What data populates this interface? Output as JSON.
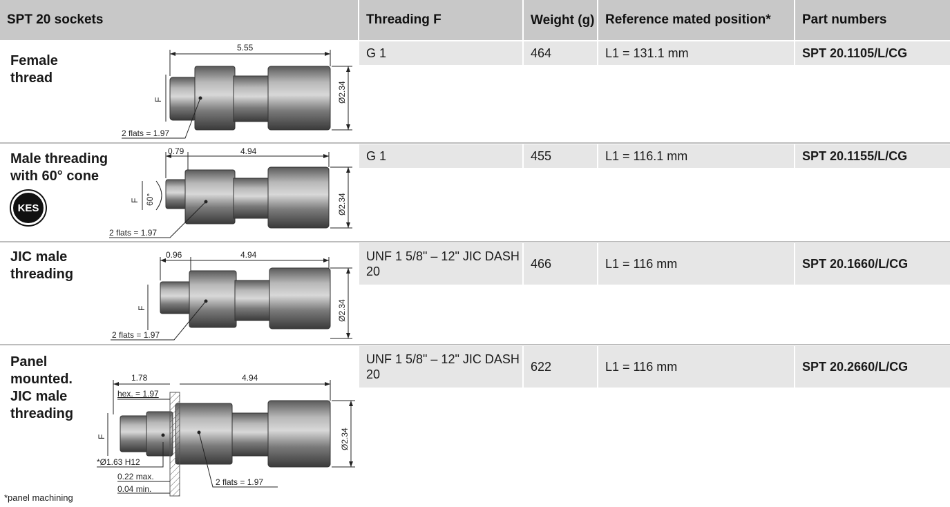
{
  "header": {
    "col1": "SPT 20 sockets",
    "col2": "Threading F",
    "col3": "Weight (g)",
    "col4": "Reference mated position*",
    "col5": "Part numbers"
  },
  "rows": [
    {
      "label": "Female thread",
      "threading": "G 1",
      "weight": "464",
      "position": "L1 = 131.1 mm",
      "part": "SPT 20.1105/L/CG",
      "dims": {
        "length": "5.55",
        "flats": "2 flats = 1.97",
        "dia": "Ø2.34",
        "f": "F"
      }
    },
    {
      "label": "Male threading with 60° cone",
      "threading": "G 1",
      "weight": "455",
      "position": "L1 = 116.1 mm",
      "part": "SPT 20.1155/L/CG",
      "badge": "KES",
      "dims": {
        "short": "0.79",
        "length": "4.94",
        "flats": "2 flats = 1.97",
        "dia": "Ø2.34",
        "f": "F",
        "angle": "60°"
      }
    },
    {
      "label": "JIC male threading",
      "threading": "UNF 1 5/8\" – 12\" JIC DASH 20",
      "weight": "466",
      "position": "L1 = 116 mm",
      "part": "SPT 20.1660/L/CG",
      "dims": {
        "short": "0.96",
        "length": "4.94",
        "flats": "2 flats = 1.97",
        "dia": "Ø2.34",
        "f": "F"
      }
    },
    {
      "label": "Panel mounted. JIC male threading",
      "threading": "UNF 1 5/8\" – 12\" JIC DASH 20",
      "weight": "622",
      "position": "L1 = 116 mm",
      "part": "SPT 20.2660/L/CG",
      "dims": {
        "short": "1.78",
        "length": "4.94",
        "hex": "hex. = 1.97",
        "panel": "*Ø1.63 H12",
        "max": "0.22 max.",
        "min": "0.04 min.",
        "flats": "2 flats = 1.97",
        "dia": "Ø2.34",
        "f": "F"
      }
    }
  ],
  "footnote": "*panel machining"
}
